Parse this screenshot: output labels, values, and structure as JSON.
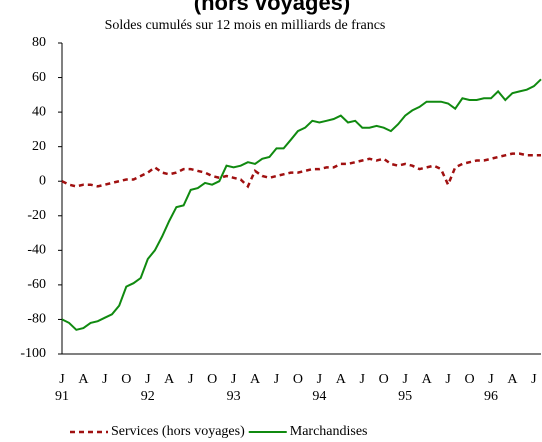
{
  "chart_data": {
    "type": "line",
    "title": "(hors voyages)",
    "subtitle": "Soldes cumulés sur 12 mois en milliards de francs",
    "x": [
      1991,
      1991.083,
      1991.167,
      1991.25,
      1991.333,
      1991.417,
      1991.5,
      1991.583,
      1991.667,
      1991.75,
      1991.833,
      1991.917,
      1992,
      1992.083,
      1992.167,
      1992.25,
      1992.333,
      1992.417,
      1992.5,
      1992.583,
      1992.667,
      1992.75,
      1992.833,
      1992.917,
      1993,
      1993.083,
      1993.167,
      1993.25,
      1993.333,
      1993.417,
      1993.5,
      1993.583,
      1993.667,
      1993.75,
      1993.833,
      1993.917,
      1994,
      1994.083,
      1994.167,
      1994.25,
      1994.333,
      1994.417,
      1994.5,
      1994.583,
      1994.667,
      1994.75,
      1994.833,
      1994.917,
      1995,
      1995.083,
      1995.167,
      1995.25,
      1995.333,
      1995.417,
      1995.5,
      1995.583,
      1995.667,
      1995.75,
      1995.833,
      1995.917,
      1996,
      1996.083,
      1996.167,
      1996.25,
      1996.333,
      1996.417,
      1996.5,
      1996.583
    ],
    "series": [
      {
        "name": "Services (hors voyages)",
        "color": "#a01010",
        "dashed": true,
        "values": [
          0,
          -2,
          -3,
          -2,
          -2,
          -3,
          -2,
          -1,
          0,
          1,
          1,
          3,
          5,
          8,
          5,
          4,
          5,
          7,
          7,
          6,
          5,
          3,
          2,
          3,
          2,
          1,
          -3,
          6,
          3,
          2,
          3,
          4,
          5,
          5,
          6,
          7,
          7,
          8,
          8,
          10,
          10,
          11,
          12,
          13,
          12,
          13,
          10,
          9,
          10,
          9,
          7,
          8,
          9,
          7,
          -2,
          8,
          10,
          11,
          12,
          12,
          13,
          14,
          15,
          16,
          16,
          15,
          15,
          15
        ]
      },
      {
        "name": "Marchandises",
        "color": "#108a10",
        "dashed": false,
        "values": [
          -80,
          -82,
          -86,
          -85,
          -82,
          -81,
          -79,
          -77,
          -72,
          -61,
          -59,
          -56,
          -45,
          -40,
          -32,
          -23,
          -15,
          -14,
          -5,
          -4,
          -1,
          -2,
          0,
          9,
          8,
          9,
          11,
          10,
          13,
          14,
          19,
          19,
          24,
          29,
          31,
          35,
          34,
          35,
          36,
          38,
          34,
          35,
          31,
          31,
          32,
          31,
          29,
          33,
          38,
          41,
          43,
          46,
          46,
          46,
          45,
          42,
          48,
          47,
          47,
          48,
          48,
          52,
          47,
          51,
          52,
          53,
          55,
          59
        ]
      }
    ],
    "xlim": [
      1991,
      1996.583
    ],
    "xticks": [
      {
        "value": 1991,
        "label": "J"
      },
      {
        "value": 1991.25,
        "label": "A"
      },
      {
        "value": 1991.5,
        "label": "J"
      },
      {
        "value": 1991.75,
        "label": "O"
      },
      {
        "value": 1992,
        "label": "J"
      },
      {
        "value": 1992.25,
        "label": "A"
      },
      {
        "value": 1992.5,
        "label": "J"
      },
      {
        "value": 1992.75,
        "label": "O"
      },
      {
        "value": 1993,
        "label": "J"
      },
      {
        "value": 1993.25,
        "label": "A"
      },
      {
        "value": 1993.5,
        "label": "J"
      },
      {
        "value": 1993.75,
        "label": "O"
      },
      {
        "value": 1994,
        "label": "J"
      },
      {
        "value": 1994.25,
        "label": "A"
      },
      {
        "value": 1994.5,
        "label": "J"
      },
      {
        "value": 1994.75,
        "label": "O"
      },
      {
        "value": 1995,
        "label": "J"
      },
      {
        "value": 1995.25,
        "label": "A"
      },
      {
        "value": 1995.5,
        "label": "J"
      },
      {
        "value": 1995.75,
        "label": "O"
      },
      {
        "value": 1996,
        "label": "J"
      },
      {
        "value": 1996.25,
        "label": "A"
      },
      {
        "value": 1996.5,
        "label": "J"
      }
    ],
    "xtick_years": [
      {
        "value": 1991,
        "label": "91"
      },
      {
        "value": 1992,
        "label": "92"
      },
      {
        "value": 1993,
        "label": "93"
      },
      {
        "value": 1994,
        "label": "94"
      },
      {
        "value": 1995,
        "label": "95"
      },
      {
        "value": 1996,
        "label": "96"
      }
    ],
    "ylim": [
      -100,
      80
    ],
    "yticks": [
      -100,
      -80,
      -60,
      -40,
      -20,
      0,
      20,
      40,
      60,
      80
    ],
    "legend": "bottom"
  }
}
